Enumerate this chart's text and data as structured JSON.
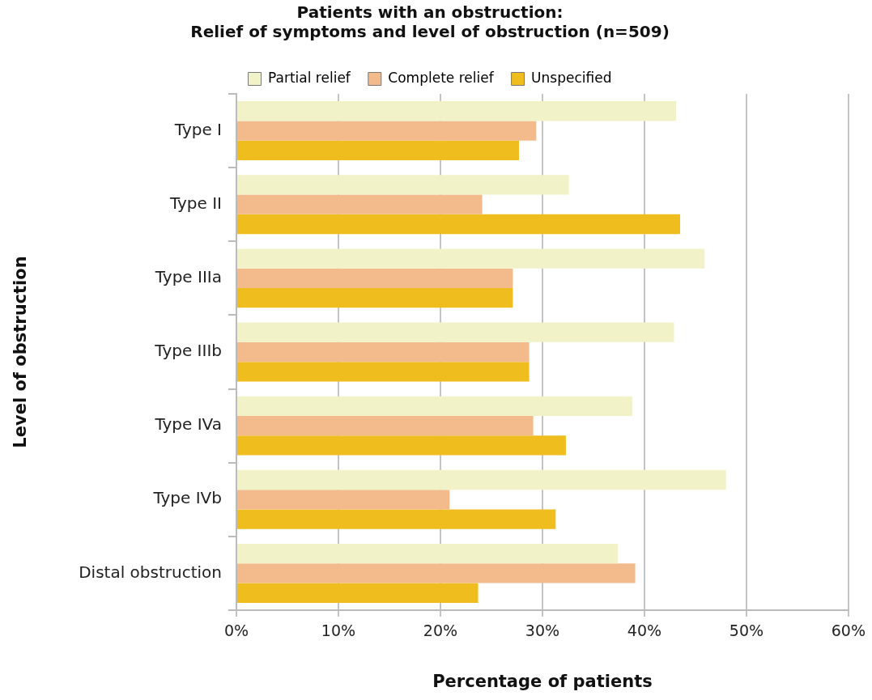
{
  "chart_data": {
    "type": "bar",
    "orientation": "horizontal",
    "title": "Patients with an obstruction:\nRelief of symptoms and level of obstruction (n=509)",
    "xlabel": "Percentage of patients",
    "ylabel": "Level of obstruction",
    "categories": [
      "Type I",
      "Type II",
      "Type IIIa",
      "Type IIIb",
      "Type IVa",
      "Type IVb",
      "Distal obstruction"
    ],
    "series": [
      {
        "name": "Partial relief",
        "color": "#f2f2c8",
        "values": [
          43.1,
          32.6,
          45.9,
          42.9,
          38.8,
          48.0,
          37.4
        ]
      },
      {
        "name": "Complete relief",
        "color": "#f3bb8c",
        "values": [
          29.4,
          24.1,
          27.1,
          28.7,
          29.1,
          20.9,
          39.1
        ]
      },
      {
        "name": "Unspecified",
        "color": "#efbe1e",
        "values": [
          27.7,
          43.5,
          27.1,
          28.7,
          32.3,
          31.3,
          23.7
        ]
      }
    ],
    "xlim": [
      0,
      60
    ],
    "xticks": [
      {
        "value": 0,
        "label": "0%"
      },
      {
        "value": 10,
        "label": "10%"
      },
      {
        "value": 20,
        "label": "20%"
      },
      {
        "value": 30,
        "label": "30%"
      },
      {
        "value": 40,
        "label": "40%"
      },
      {
        "value": 50,
        "label": "50%"
      },
      {
        "value": 60,
        "label": "60%"
      }
    ],
    "grid": "x",
    "legend": "top"
  }
}
